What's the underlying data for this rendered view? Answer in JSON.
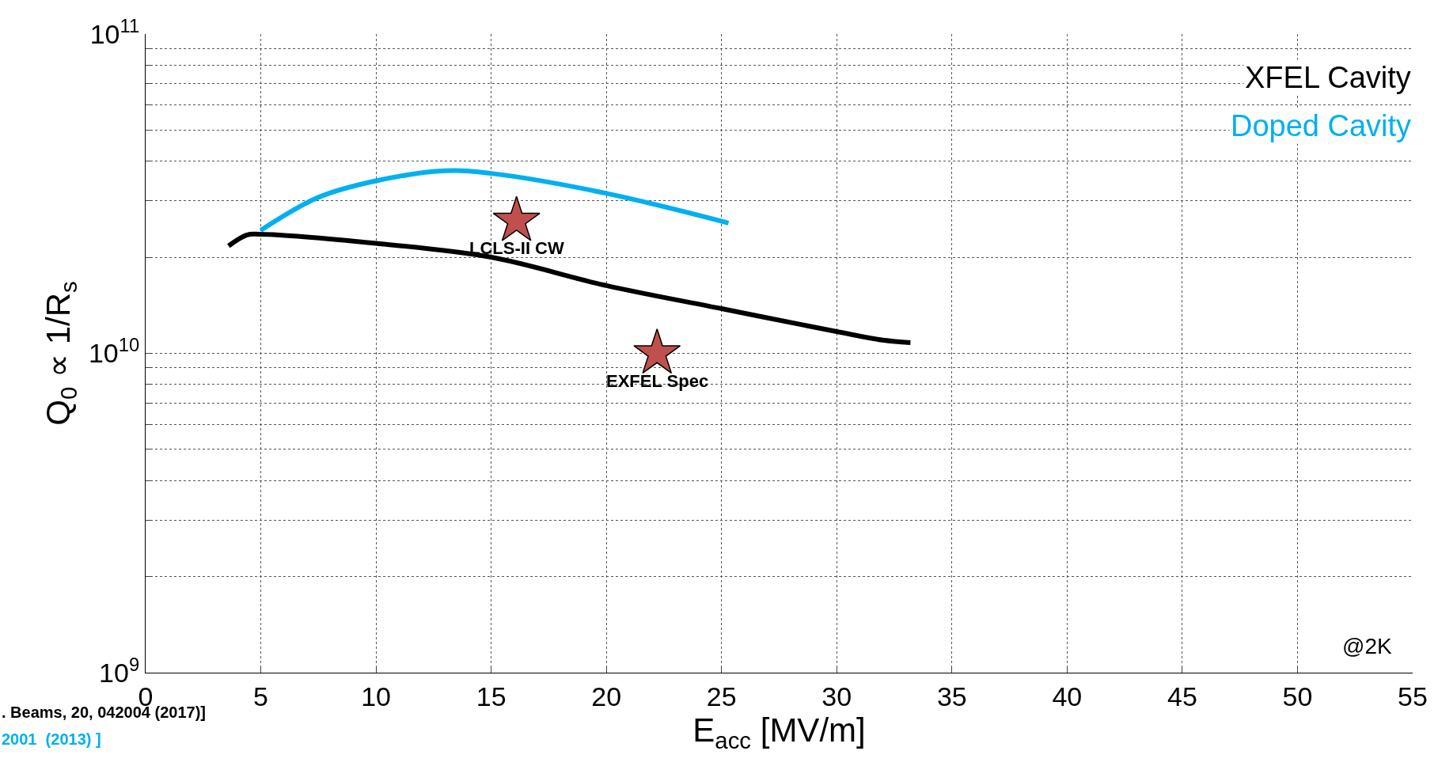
{
  "chart_data": {
    "type": "line",
    "xlabel": "E$_{acc}$ [MV/m]",
    "ylabel": "Q$_{0}$ ∝ 1/R$_{s}$",
    "series": [
      {
        "name": "XFEL Cavity",
        "color": "#000000",
        "x": [
          3.6,
          4.4,
          5,
          10,
          15,
          20,
          25,
          30,
          32,
          33.2
        ],
        "values": [
          21700000000.0,
          23500000000.0,
          23600000000.0,
          22100000000.0,
          20000000000.0,
          16300000000.0,
          13800000000.0,
          11700000000.0,
          11000000000.0,
          10800000000.0
        ]
      },
      {
        "name": "Doped Cavity",
        "color": "#00b0f0",
        "x": [
          5,
          7.5,
          10,
          13,
          15,
          20,
          25.3
        ],
        "values": [
          24300000000.0,
          30800000000.0,
          34700000000.0,
          37300000000.0,
          36600000000.0,
          31700000000.0,
          25600000000.0
        ]
      },
      {
        "type": "scatter",
        "marker": "star",
        "color": "#c0504d",
        "x": [
          16.1,
          22.2
        ],
        "values": [
          26000000000.0,
          10000000000.0
        ]
      }
    ],
    "xlim": [
      0,
      55
    ],
    "xticks": [
      0,
      5,
      10,
      15,
      20,
      25,
      30,
      35,
      40,
      45,
      50,
      55
    ],
    "ylim": [
      1000000000.0,
      100000000000.0
    ],
    "log": true,
    "yticks": [
      {
        "value": 1000000000.0,
        "label": "10$^{9}$"
      },
      {
        "value": 2000000000.0,
        "label": null
      },
      {
        "value": 3000000000.0,
        "label": null
      },
      {
        "value": 4000000000.0,
        "label": null
      },
      {
        "value": 5000000000.0,
        "label": null
      },
      {
        "value": 6000000000.0,
        "label": null
      },
      {
        "value": 7000000000.0,
        "label": null
      },
      {
        "value": 8000000000.0,
        "label": null
      },
      {
        "value": 9000000000.0,
        "label": null
      },
      {
        "value": 10000000000.0,
        "label": "10$^{10}$"
      },
      {
        "value": 20000000000.0,
        "label": null
      },
      {
        "value": 30000000000.0,
        "label": null
      },
      {
        "value": 40000000000.0,
        "label": null
      },
      {
        "value": 50000000000.0,
        "label": null
      },
      {
        "value": 60000000000.0,
        "label": null
      },
      {
        "value": 70000000000.0,
        "label": null
      },
      {
        "value": 80000000000.0,
        "label": null
      },
      {
        "value": 90000000000.0,
        "label": null
      },
      {
        "value": 100000000000.0,
        "label": "10$^{11}$"
      }
    ],
    "grid": true,
    "line_style": "solid",
    "legend": "top right",
    "annotations": [
      {
        "text": "LCLS-II CW",
        "x": 16.1,
        "y": 26000000000.0
      },
      {
        "text": "EXFEL Spec",
        "x": 22.2,
        "y": 10000000000.0
      },
      "@2K",
      ". Beams, 20, 042004 (2017)]",
      "2001  (2013) ]"
    ]
  }
}
